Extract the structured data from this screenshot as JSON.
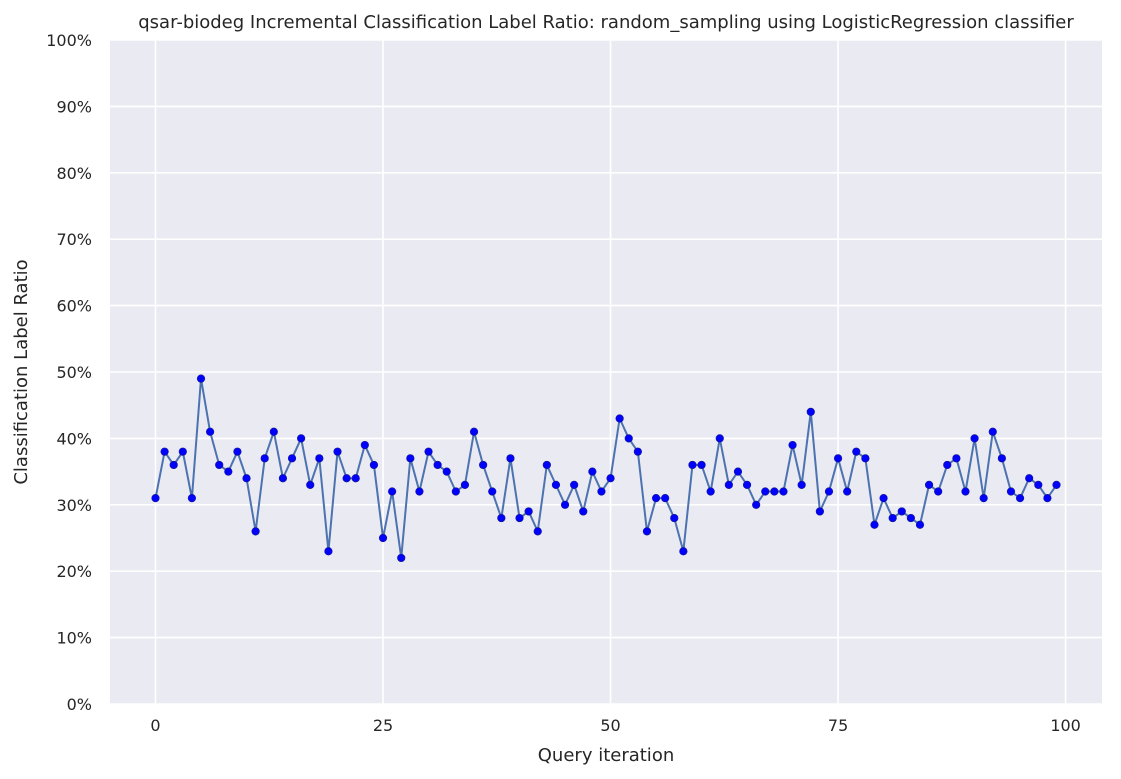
{
  "chart_data": {
    "type": "line",
    "title": "qsar-biodeg Incremental Classification Label Ratio: random_sampling using LogisticRegression classifier",
    "xlabel": "Query iteration",
    "ylabel": "Classification Label Ratio",
    "xlim": [
      -5,
      104
    ],
    "ylim": [
      0,
      1
    ],
    "x_ticks": [
      0,
      25,
      50,
      75,
      100
    ],
    "x_tick_labels": [
      "0",
      "25",
      "50",
      "75",
      "100"
    ],
    "y_ticks": [
      0,
      0.1,
      0.2,
      0.3,
      0.4,
      0.5,
      0.6,
      0.7,
      0.8,
      0.9,
      1.0
    ],
    "y_tick_labels": [
      "0%",
      "10%",
      "20%",
      "30%",
      "40%",
      "50%",
      "60%",
      "70%",
      "80%",
      "90%",
      "100%"
    ],
    "grid": true,
    "colors": {
      "background": "#eaeaf2",
      "grid": "#ffffff",
      "line": "#4c72b0",
      "marker": "#0000ff"
    },
    "series": [
      {
        "values": [
          0.31,
          0.38,
          0.36,
          0.38,
          0.31,
          0.49,
          0.41,
          0.36,
          0.35,
          0.38,
          0.34,
          0.26,
          0.37,
          0.41,
          0.34,
          0.37,
          0.4,
          0.33,
          0.37,
          0.23,
          0.38,
          0.34,
          0.34,
          0.39,
          0.36,
          0.25,
          0.32,
          0.22,
          0.37,
          0.32,
          0.38,
          0.36,
          0.35,
          0.32,
          0.33,
          0.41,
          0.36,
          0.32,
          0.28,
          0.37,
          0.28,
          0.29,
          0.26,
          0.36,
          0.33,
          0.3,
          0.33,
          0.29,
          0.35,
          0.32,
          0.34,
          0.43,
          0.4,
          0.38,
          0.26,
          0.31,
          0.31,
          0.28,
          0.23,
          0.36,
          0.36,
          0.32,
          0.4,
          0.33,
          0.35,
          0.33,
          0.3,
          0.32,
          0.32,
          0.32,
          0.39,
          0.33,
          0.44,
          0.29,
          0.32,
          0.37,
          0.32,
          0.38,
          0.37,
          0.27,
          0.31,
          0.28,
          0.29,
          0.28,
          0.27,
          0.33,
          0.32,
          0.36,
          0.37,
          0.32,
          0.4,
          0.31,
          0.41,
          0.37,
          0.32,
          0.31,
          0.34,
          0.33,
          0.31,
          0.33
        ]
      }
    ]
  }
}
